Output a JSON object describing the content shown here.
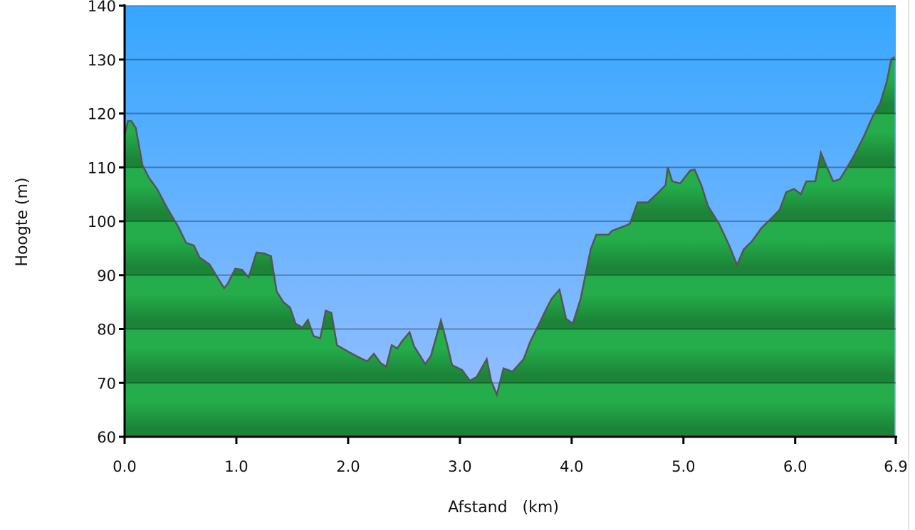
{
  "chart_data": {
    "type": "area",
    "title": "",
    "xlabel": "Afstand   (km)",
    "ylabel": "Hoogte (m)",
    "xlim": [
      0,
      6.9
    ],
    "ylim": [
      60,
      140
    ],
    "x_ticks": [
      "0.0",
      "1.0",
      "2.0",
      "3.0",
      "4.0",
      "5.0",
      "6.0",
      "6.9"
    ],
    "x_tick_values": [
      0,
      1,
      2,
      3,
      4,
      5,
      6,
      6.9
    ],
    "y_ticks": [
      "60",
      "70",
      "80",
      "90",
      "100",
      "110",
      "120",
      "130",
      "140"
    ],
    "y_tick_values": [
      60,
      70,
      80,
      90,
      100,
      110,
      120,
      130,
      140
    ],
    "grid": true,
    "colors": {
      "sky_top": "#36a6ff",
      "sky_bottom": "#9cc0ff",
      "ground_light": "#24ad4a",
      "ground_dark": "#1c8438",
      "outline": "#555555"
    },
    "series": [
      {
        "x": [
          0.0,
          0.03,
          0.06,
          0.1,
          0.16,
          0.22,
          0.29,
          0.38,
          0.48,
          0.55,
          0.62,
          0.67,
          0.76,
          0.83,
          0.89,
          0.92,
          0.99,
          1.05,
          1.11,
          1.18,
          1.25,
          1.31,
          1.36,
          1.42,
          1.48,
          1.53,
          1.59,
          1.64,
          1.69,
          1.75,
          1.8,
          1.85,
          1.9,
          2.01,
          2.1,
          2.17,
          2.23,
          2.29,
          2.34,
          2.39,
          2.44,
          2.48,
          2.55,
          2.59,
          2.69,
          2.74,
          2.78,
          2.83,
          2.88,
          2.93,
          3.02,
          3.09,
          3.15,
          3.24,
          3.28,
          3.33,
          3.39,
          3.47,
          3.57,
          3.63,
          3.71,
          3.76,
          3.82,
          3.89,
          3.95,
          4.01,
          4.08,
          4.17,
          4.22,
          4.33,
          4.36,
          4.46,
          4.52,
          4.59,
          4.68,
          4.75,
          4.84,
          4.86,
          4.9,
          4.97,
          5.06,
          5.1,
          5.16,
          5.22,
          5.32,
          5.41,
          5.48,
          5.54,
          5.61,
          5.7,
          5.8,
          5.86,
          5.92,
          5.99,
          6.05,
          6.1,
          6.18,
          6.23,
          6.27,
          6.34,
          6.4,
          6.46,
          6.53,
          6.62,
          6.69,
          6.76,
          6.82,
          6.86,
          6.89
        ],
        "y": [
          116.0,
          118.6,
          118.6,
          117.3,
          110.4,
          108.0,
          106.0,
          102.5,
          99.0,
          96.0,
          95.5,
          93.3,
          92.0,
          89.6,
          87.6,
          88.3,
          91.2,
          91.0,
          89.6,
          94.2,
          94.0,
          93.5,
          87.0,
          85.0,
          84.0,
          81.0,
          80.3,
          81.7,
          78.7,
          78.3,
          83.4,
          83.0,
          77.0,
          75.7,
          74.7,
          74.0,
          75.4,
          73.7,
          73.0,
          77.0,
          76.4,
          77.7,
          79.4,
          76.8,
          73.5,
          75.0,
          77.9,
          81.6,
          77.7,
          73.3,
          72.4,
          70.4,
          71.1,
          74.4,
          70.4,
          67.8,
          72.7,
          72.1,
          74.4,
          77.7,
          81.0,
          83.2,
          85.6,
          87.3,
          81.9,
          81.0,
          85.6,
          94.8,
          97.5,
          97.5,
          98.2,
          99.0,
          99.5,
          103.5,
          103.5,
          104.8,
          106.7,
          110.0,
          107.4,
          107.0,
          109.4,
          109.6,
          106.7,
          102.8,
          99.5,
          95.5,
          91.9,
          94.8,
          96.2,
          98.8,
          100.8,
          102.1,
          105.4,
          106.0,
          105.0,
          107.4,
          107.4,
          112.7,
          110.7,
          107.4,
          107.8,
          109.8,
          112.3,
          116.0,
          119.3,
          121.9,
          125.9,
          130.1,
          130.5
        ]
      }
    ]
  }
}
